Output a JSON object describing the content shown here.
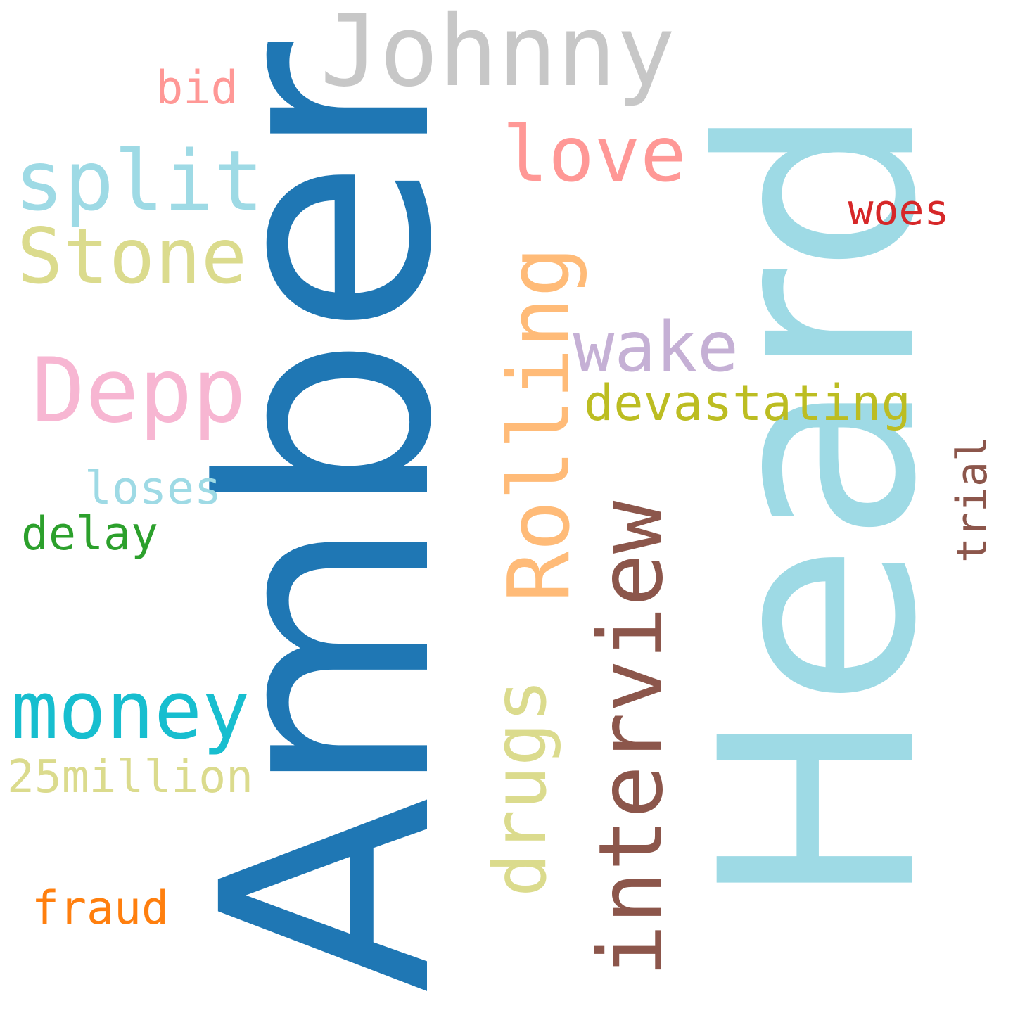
{
  "words": [
    {
      "key": "heard",
      "text": "Heard",
      "color": "#9edae5",
      "orientation": "vertical",
      "font": "sans"
    },
    {
      "key": "amber",
      "text": "Amber",
      "color": "#1f77b4",
      "orientation": "vertical",
      "font": "sans"
    },
    {
      "key": "interview",
      "text": "interview",
      "color": "#8c564b",
      "orientation": "vertical",
      "font": "mono"
    },
    {
      "key": "rolling",
      "text": "Rolling",
      "color": "#ffbb78",
      "orientation": "vertical",
      "font": "mono"
    },
    {
      "key": "drugs",
      "text": "drugs",
      "color": "#dbdb8d",
      "orientation": "vertical",
      "font": "mono"
    },
    {
      "key": "trial",
      "text": "trial",
      "color": "#8c564b",
      "orientation": "vertical",
      "font": "mono"
    },
    {
      "key": "johnny",
      "text": "Johnny",
      "color": "#c7c7c7",
      "orientation": "horizontal",
      "font": "mono"
    },
    {
      "key": "love",
      "text": "love",
      "color": "#ff9896",
      "orientation": "horizontal",
      "font": "mono"
    },
    {
      "key": "split",
      "text": "split",
      "color": "#9edae5",
      "orientation": "horizontal",
      "font": "mono"
    },
    {
      "key": "stone",
      "text": "Stone",
      "color": "#dbdb8d",
      "orientation": "horizontal",
      "font": "mono"
    },
    {
      "key": "depp",
      "text": "Depp",
      "color": "#f7b6d2",
      "orientation": "horizontal",
      "font": "mono"
    },
    {
      "key": "wake",
      "text": "wake",
      "color": "#c5b0d5",
      "orientation": "horizontal",
      "font": "mono"
    },
    {
      "key": "devastating",
      "text": "devastating",
      "color": "#bcbd22",
      "orientation": "horizontal",
      "font": "mono"
    },
    {
      "key": "money",
      "text": "money",
      "color": "#17becf",
      "orientation": "horizontal",
      "font": "mono"
    },
    {
      "key": "million",
      "text": "25million",
      "color": "#dbdb8d",
      "orientation": "horizontal",
      "font": "mono"
    },
    {
      "key": "loses",
      "text": "loses",
      "color": "#9edae5",
      "orientation": "horizontal",
      "font": "mono"
    },
    {
      "key": "delay",
      "text": "delay",
      "color": "#2ca02c",
      "orientation": "horizontal",
      "font": "mono"
    },
    {
      "key": "fraud",
      "text": "fraud",
      "color": "#ff7f0e",
      "orientation": "horizontal",
      "font": "mono"
    },
    {
      "key": "bid",
      "text": "bid",
      "color": "#ff9896",
      "orientation": "horizontal",
      "font": "mono"
    },
    {
      "key": "woes",
      "text": "woes",
      "color": "#d62728",
      "orientation": "horizontal",
      "font": "mono"
    }
  ]
}
